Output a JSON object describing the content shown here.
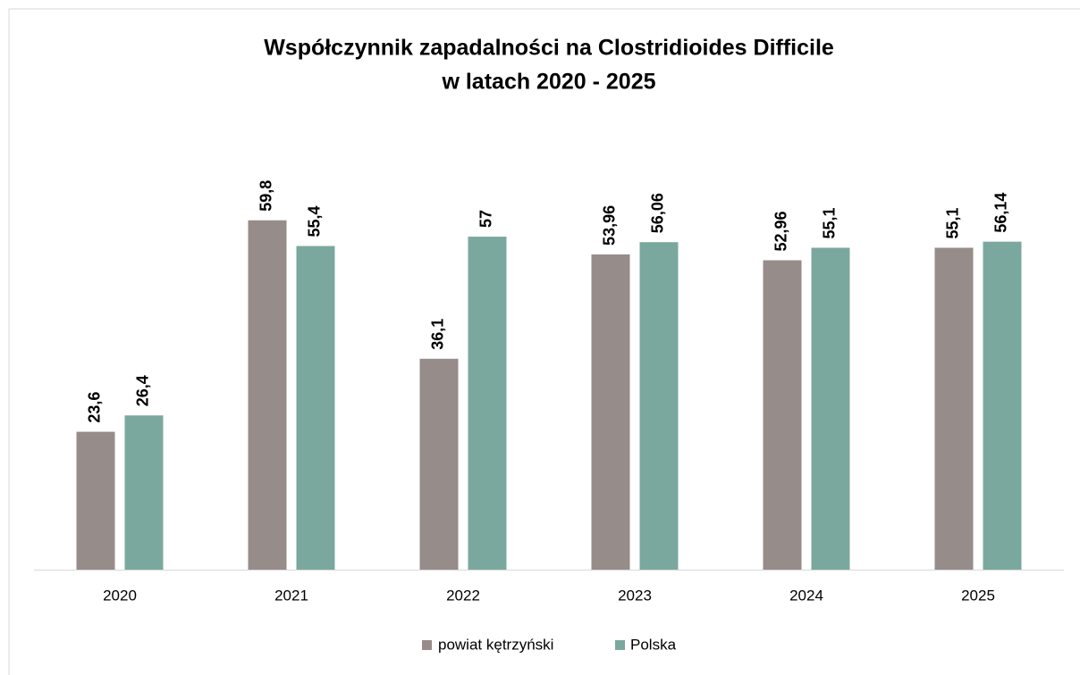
{
  "chart_data": {
    "type": "bar",
    "title": "Współczynnik zapadalności na Clostridioides Difficile",
    "subtitle": "w latach 2020 - 2025",
    "categories": [
      "2020",
      "2021",
      "2022",
      "2023",
      "2024",
      "2025"
    ],
    "series": [
      {
        "name": "powiat kętrzyński",
        "color": "#968c89",
        "values": [
          23.6,
          59.8,
          36.1,
          53.96,
          52.96,
          55.1
        ],
        "value_labels": [
          "23,6",
          "59,8",
          "36,1",
          "53,96",
          "52,96",
          "55,1"
        ]
      },
      {
        "name": "Polska",
        "color": "#7ba89e",
        "values": [
          26.4,
          55.4,
          57,
          56.06,
          55.1,
          56.14
        ],
        "value_labels": [
          "26,4",
          "55,4",
          "57",
          "56,06",
          "55,1",
          "56,14"
        ]
      }
    ],
    "ylim": [
      0,
      70
    ],
    "legend": "bottom"
  }
}
